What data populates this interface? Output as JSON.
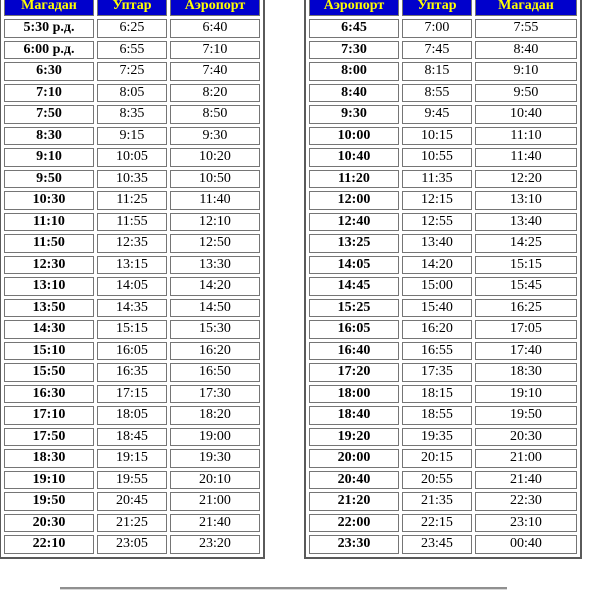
{
  "colors": {
    "header_bg": "#0000cc",
    "header_text": "#ffff00",
    "cell_border": "#757575",
    "outer_border": "#5a5a5a",
    "cell_text": "#000000",
    "divider": "#909090",
    "page_bg": "#ffffff"
  },
  "left_table": {
    "direction": "Магадан — Уптар — Аэропорт",
    "headers": [
      "Магадан",
      "Уптар",
      "Аэропорт"
    ],
    "rows": [
      [
        "5:30 р.д.",
        "6:25",
        "6:40"
      ],
      [
        "6:00 р.д.",
        "6:55",
        "7:10"
      ],
      [
        "6:30",
        "7:25",
        "7:40"
      ],
      [
        "7:10",
        "8:05",
        "8:20"
      ],
      [
        "7:50",
        "8:35",
        "8:50"
      ],
      [
        "8:30",
        "9:15",
        "9:30"
      ],
      [
        "9:10",
        "10:05",
        "10:20"
      ],
      [
        "9:50",
        "10:35",
        "10:50"
      ],
      [
        "10:30",
        "11:25",
        "11:40"
      ],
      [
        "11:10",
        "11:55",
        "12:10"
      ],
      [
        "11:50",
        "12:35",
        "12:50"
      ],
      [
        "12:30",
        "13:15",
        "13:30"
      ],
      [
        "13:10",
        "14:05",
        "14:20"
      ],
      [
        "13:50",
        "14:35",
        "14:50"
      ],
      [
        "14:30",
        "15:15",
        "15:30"
      ],
      [
        "15:10",
        "16:05",
        "16:20"
      ],
      [
        "15:50",
        "16:35",
        "16:50"
      ],
      [
        "16:30",
        "17:15",
        "17:30"
      ],
      [
        "17:10",
        "18:05",
        "18:20"
      ],
      [
        "17:50",
        "18:45",
        "19:00"
      ],
      [
        "18:30",
        "19:15",
        "19:30"
      ],
      [
        "19:10",
        "19:55",
        "20:10"
      ],
      [
        "19:50",
        "20:45",
        "21:00"
      ],
      [
        "20:30",
        "21:25",
        "21:40"
      ],
      [
        "22:10",
        "23:05",
        "23:20"
      ]
    ]
  },
  "right_table": {
    "direction": "Аэропорт — Уптар — Магадан",
    "headers": [
      "Аэропорт",
      "Уптар",
      "Магадан"
    ],
    "rows": [
      [
        "6:45",
        "7:00",
        "7:55"
      ],
      [
        "7:30",
        "7:45",
        "8:40"
      ],
      [
        "8:00",
        "8:15",
        "9:10"
      ],
      [
        "8:40",
        "8:55",
        "9:50"
      ],
      [
        "9:30",
        "9:45",
        "10:40"
      ],
      [
        "10:00",
        "10:15",
        "11:10"
      ],
      [
        "10:40",
        "10:55",
        "11:40"
      ],
      [
        "11:20",
        "11:35",
        "12:20"
      ],
      [
        "12:00",
        "12:15",
        "13:10"
      ],
      [
        "12:40",
        "12:55",
        "13:40"
      ],
      [
        "13:25",
        "13:40",
        "14:25"
      ],
      [
        "14:05",
        "14:20",
        "15:15"
      ],
      [
        "14:45",
        "15:00",
        "15:45"
      ],
      [
        "15:25",
        "15:40",
        "16:25"
      ],
      [
        "16:05",
        "16:20",
        "17:05"
      ],
      [
        "16:40",
        "16:55",
        "17:40"
      ],
      [
        "17:20",
        "17:35",
        "18:30"
      ],
      [
        "18:00",
        "18:15",
        "19:10"
      ],
      [
        "18:40",
        "18:55",
        "19:50"
      ],
      [
        "19:20",
        "19:35",
        "20:30"
      ],
      [
        "20:00",
        "20:15",
        "21:00"
      ],
      [
        "20:40",
        "20:55",
        "21:40"
      ],
      [
        "21:20",
        "21:35",
        "22:30"
      ],
      [
        "22:00",
        "22:15",
        "23:10"
      ],
      [
        "23:30",
        "23:45",
        "00:40"
      ]
    ]
  }
}
